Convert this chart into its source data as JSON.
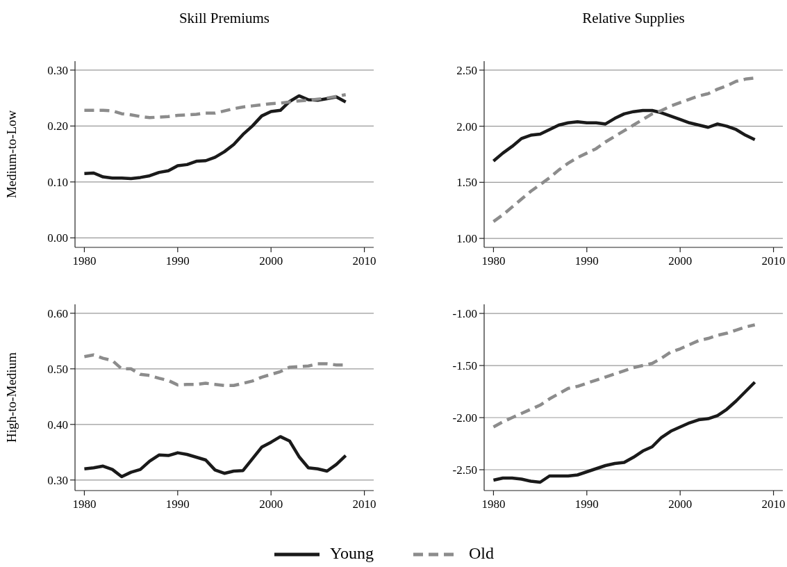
{
  "chart_data": [
    {
      "type": "line",
      "title": "Skill Premiums",
      "ylabel": "Medium-to-Low",
      "x": [
        1980,
        1981,
        1982,
        1983,
        1984,
        1985,
        1986,
        1987,
        1988,
        1989,
        1990,
        1991,
        1992,
        1993,
        1994,
        1995,
        1996,
        1997,
        1998,
        1999,
        2000,
        2001,
        2002,
        2003,
        2004,
        2005,
        2006,
        2007,
        2008
      ],
      "xlim": [
        1979,
        2011
      ],
      "xticks": [
        1980,
        1990,
        2000,
        2010
      ],
      "ylim": [
        -0.017,
        0.316
      ],
      "yticks": [
        {
          "value": 0,
          "label": "0.00"
        },
        {
          "value": 0.1,
          "label": "0.10"
        },
        {
          "value": 0.2,
          "label": "0.20"
        },
        {
          "value": 0.3,
          "label": "0.30"
        }
      ],
      "grid": "y",
      "series": [
        {
          "color": "#1a1a1a",
          "line_style": "solid",
          "values": [
            0.115,
            0.116,
            0.109,
            0.107,
            0.107,
            0.106,
            0.108,
            0.111,
            0.117,
            0.12,
            0.129,
            0.131,
            0.137,
            0.138,
            0.144,
            0.154,
            0.167,
            0.185,
            0.2,
            0.218,
            0.226,
            0.228,
            0.244,
            0.254,
            0.247,
            0.246,
            0.249,
            0.252,
            0.243
          ]
        },
        {
          "color": "#8c8c8c",
          "line_style": "dashed",
          "values": [
            0.228,
            0.228,
            0.228,
            0.227,
            0.222,
            0.22,
            0.217,
            0.215,
            0.216,
            0.217,
            0.219,
            0.22,
            0.221,
            0.223,
            0.223,
            0.227,
            0.231,
            0.234,
            0.236,
            0.238,
            0.24,
            0.241,
            0.243,
            0.245,
            0.246,
            0.248,
            0.25,
            0.253,
            0.256
          ]
        }
      ]
    },
    {
      "type": "line",
      "title": "Relative Supplies",
      "x": [
        1980,
        1981,
        1982,
        1983,
        1984,
        1985,
        1986,
        1987,
        1988,
        1989,
        1990,
        1991,
        1992,
        1993,
        1994,
        1995,
        1996,
        1997,
        1998,
        1999,
        2000,
        2001,
        2002,
        2003,
        2004,
        2005,
        2006,
        2007,
        2008
      ],
      "xlim": [
        1979,
        2011
      ],
      "xticks": [
        1980,
        1990,
        2000,
        2010
      ],
      "ylim": [
        0.92,
        2.58
      ],
      "yticks": [
        {
          "value": 1,
          "label": "1.00"
        },
        {
          "value": 1.5,
          "label": "1.50"
        },
        {
          "value": 2,
          "label": "2.00"
        },
        {
          "value": 2.5,
          "label": "2.50"
        }
      ],
      "grid": "y",
      "series": [
        {
          "color": "#1a1a1a",
          "line_style": "solid",
          "values": [
            1.69,
            1.76,
            1.82,
            1.89,
            1.92,
            1.93,
            1.97,
            2.01,
            2.03,
            2.04,
            2.03,
            2.03,
            2.02,
            2.07,
            2.11,
            2.13,
            2.14,
            2.14,
            2.12,
            2.09,
            2.06,
            2.03,
            2.01,
            1.99,
            2.02,
            2.0,
            1.97,
            1.92,
            1.88
          ]
        },
        {
          "color": "#8c8c8c",
          "line_style": "dashed",
          "values": [
            1.15,
            1.21,
            1.28,
            1.35,
            1.42,
            1.48,
            1.54,
            1.61,
            1.67,
            1.72,
            1.76,
            1.8,
            1.86,
            1.91,
            1.96,
            2.01,
            2.06,
            2.11,
            2.14,
            2.18,
            2.21,
            2.24,
            2.27,
            2.29,
            2.33,
            2.36,
            2.4,
            2.42,
            2.43
          ]
        }
      ]
    },
    {
      "type": "line",
      "ylabel": "High-to-Medium",
      "x": [
        1980,
        1981,
        1982,
        1983,
        1984,
        1985,
        1986,
        1987,
        1988,
        1989,
        1990,
        1991,
        1992,
        1993,
        1994,
        1995,
        1996,
        1997,
        1998,
        1999,
        2000,
        2001,
        2002,
        2003,
        2004,
        2005,
        2006,
        2007,
        2008
      ],
      "xlim": [
        1979,
        2011
      ],
      "xticks": [
        1980,
        1990,
        2000,
        2010
      ],
      "ylim": [
        0.281,
        0.616
      ],
      "yticks": [
        {
          "value": 0.3,
          "label": "0.30"
        },
        {
          "value": 0.4,
          "label": "0.40"
        },
        {
          "value": 0.5,
          "label": "0.50"
        },
        {
          "value": 0.6,
          "label": "0.60"
        }
      ],
      "grid": "y",
      "series": [
        {
          "color": "#1a1a1a",
          "line_style": "solid",
          "values": [
            0.32,
            0.322,
            0.325,
            0.319,
            0.306,
            0.314,
            0.319,
            0.334,
            0.345,
            0.344,
            0.349,
            0.346,
            0.341,
            0.336,
            0.318,
            0.312,
            0.316,
            0.317,
            0.338,
            0.359,
            0.368,
            0.378,
            0.37,
            0.342,
            0.322,
            0.32,
            0.316,
            0.328,
            0.344
          ]
        },
        {
          "color": "#8c8c8c",
          "line_style": "dashed",
          "values": [
            0.522,
            0.525,
            0.519,
            0.515,
            0.5,
            0.5,
            0.49,
            0.488,
            0.483,
            0.479,
            0.471,
            0.472,
            0.472,
            0.474,
            0.472,
            0.47,
            0.47,
            0.474,
            0.478,
            0.485,
            0.49,
            0.495,
            0.503,
            0.504,
            0.505,
            0.509,
            0.509,
            0.507,
            0.507
          ]
        }
      ]
    },
    {
      "type": "line",
      "x": [
        1980,
        1981,
        1982,
        1983,
        1984,
        1985,
        1986,
        1987,
        1988,
        1989,
        1990,
        1991,
        1992,
        1993,
        1994,
        1995,
        1996,
        1997,
        1998,
        1999,
        2000,
        2001,
        2002,
        2003,
        2004,
        2005,
        2006,
        2007,
        2008
      ],
      "xlim": [
        1979,
        2011
      ],
      "xticks": [
        1980,
        1990,
        2000,
        2010
      ],
      "ylim": [
        -2.7,
        -0.913
      ],
      "yticks": [
        {
          "value": -2.5,
          "label": "-2.50"
        },
        {
          "value": -2,
          "label": "-2.00"
        },
        {
          "value": -1.5,
          "label": "-1.50"
        },
        {
          "value": -1,
          "label": "-1.00"
        }
      ],
      "grid": "y",
      "legend": "bottom",
      "series": [
        {
          "name": "Young",
          "color": "#1a1a1a",
          "line_style": "solid",
          "values": [
            -2.6,
            -2.58,
            -2.58,
            -2.59,
            -2.61,
            -2.62,
            -2.56,
            -2.56,
            -2.56,
            -2.55,
            -2.52,
            -2.49,
            -2.46,
            -2.44,
            -2.43,
            -2.38,
            -2.32,
            -2.28,
            -2.19,
            -2.13,
            -2.09,
            -2.05,
            -2.02,
            -2.01,
            -1.98,
            -1.92,
            -1.84,
            -1.75,
            -1.66
          ]
        },
        {
          "name": "Old",
          "color": "#8c8c8c",
          "line_style": "dashed",
          "values": [
            -2.09,
            -2.04,
            -2.0,
            -1.96,
            -1.92,
            -1.88,
            -1.82,
            -1.77,
            -1.72,
            -1.7,
            -1.67,
            -1.64,
            -1.61,
            -1.58,
            -1.55,
            -1.52,
            -1.5,
            -1.48,
            -1.43,
            -1.37,
            -1.34,
            -1.3,
            -1.26,
            -1.24,
            -1.21,
            -1.19,
            -1.16,
            -1.13,
            -1.11
          ]
        }
      ]
    }
  ]
}
